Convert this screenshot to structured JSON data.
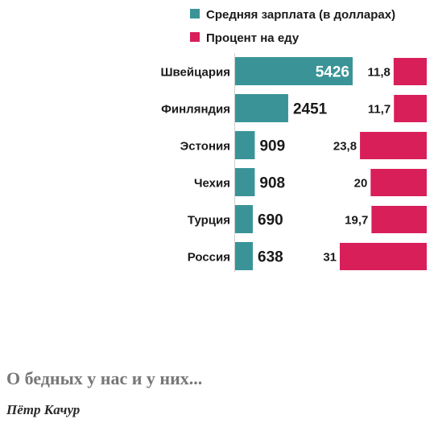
{
  "chart_data": {
    "type": "bar",
    "categories": [
      "Швейцария",
      "Финляндия",
      "Эстония",
      "Чехия",
      "Турция",
      "Россия"
    ],
    "series": [
      {
        "name": "Средняя зарплата (в долларах)",
        "values": [
          5426,
          2451,
          909,
          908,
          690,
          638
        ],
        "labels": [
          "5426",
          "2451",
          "909",
          "908",
          "690",
          "638"
        ],
        "color": "#3a9497"
      },
      {
        "name": "Процент на еду",
        "values": [
          11.8,
          11.7,
          23.8,
          20,
          19.7,
          31
        ],
        "labels": [
          "11,8",
          "11,7",
          "23,8",
          "20",
          "19,7",
          "31"
        ],
        "color": "#d81f5a"
      }
    ],
    "legend": [
      "Средняя зарплата (в долларах)",
      "Процент на еду"
    ],
    "legend_position": "top",
    "grid": false
  },
  "article": {
    "title": "О бедных у нас и у них...",
    "author": "Пётр Качур"
  }
}
